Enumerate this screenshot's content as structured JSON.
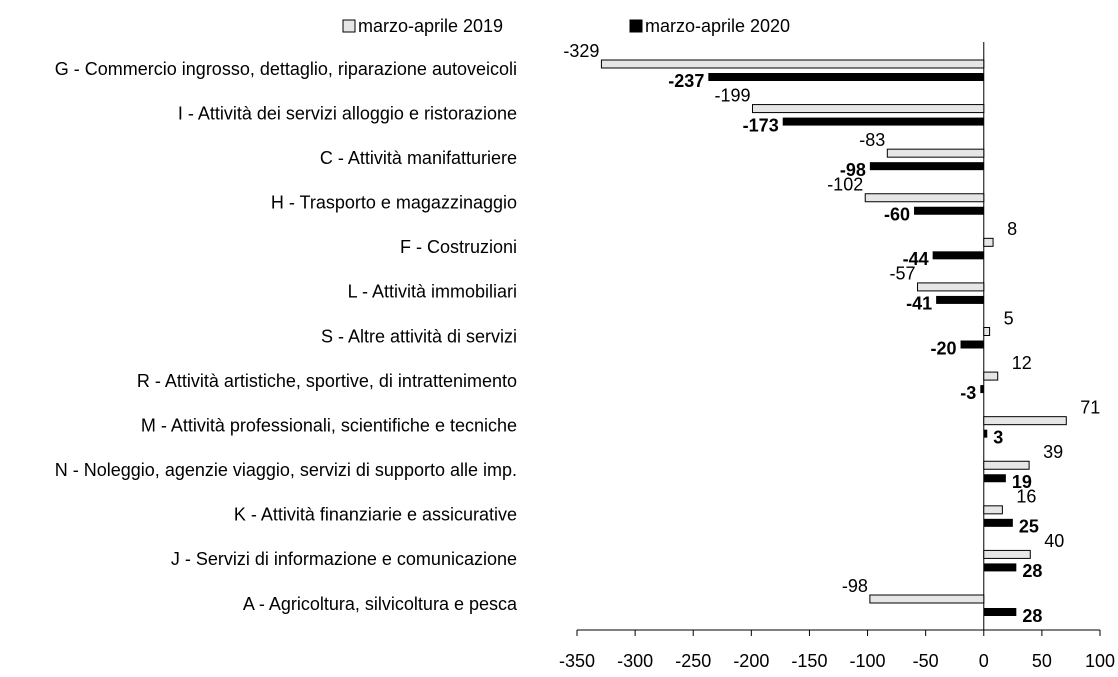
{
  "chart_data": {
    "type": "barh",
    "categories": [
      "G - Commercio ingrosso, dettaglio, riparazione autoveicoli",
      "I - Attività dei servizi alloggio e ristorazione",
      "C - Attività manifatturiere",
      "H - Trasporto e magazzinaggio",
      "F - Costruzioni",
      "L - Attività immobiliari",
      "S - Altre attività di servizi",
      "R - Attività artistiche, sportive, di intrattenimento",
      "M - Attività professionali, scientifiche e tecniche",
      "N - Noleggio, agenzie viaggio, servizi di supporto alle imp.",
      "K - Attività finanziarie e assicurative",
      "J - Servizi di informazione e comunicazione",
      "A - Agricoltura, silvicoltura e pesca"
    ],
    "series": [
      {
        "name": "marzo-aprile 2019",
        "color": "#e6e6e6",
        "values": [
          -329,
          -199,
          -83,
          -102,
          8,
          -57,
          5,
          12,
          71,
          39,
          16,
          40,
          -98
        ]
      },
      {
        "name": "marzo-aprile 2020",
        "color": "#000000",
        "values": [
          -237,
          -173,
          -98,
          -60,
          -44,
          -41,
          -20,
          -3,
          3,
          19,
          25,
          28,
          28
        ]
      }
    ],
    "xlim": [
      -350,
      100
    ],
    "xticks": [
      -350,
      -300,
      -250,
      -200,
      -150,
      -100,
      -50,
      0,
      50,
      100
    ],
    "legend": "top"
  }
}
